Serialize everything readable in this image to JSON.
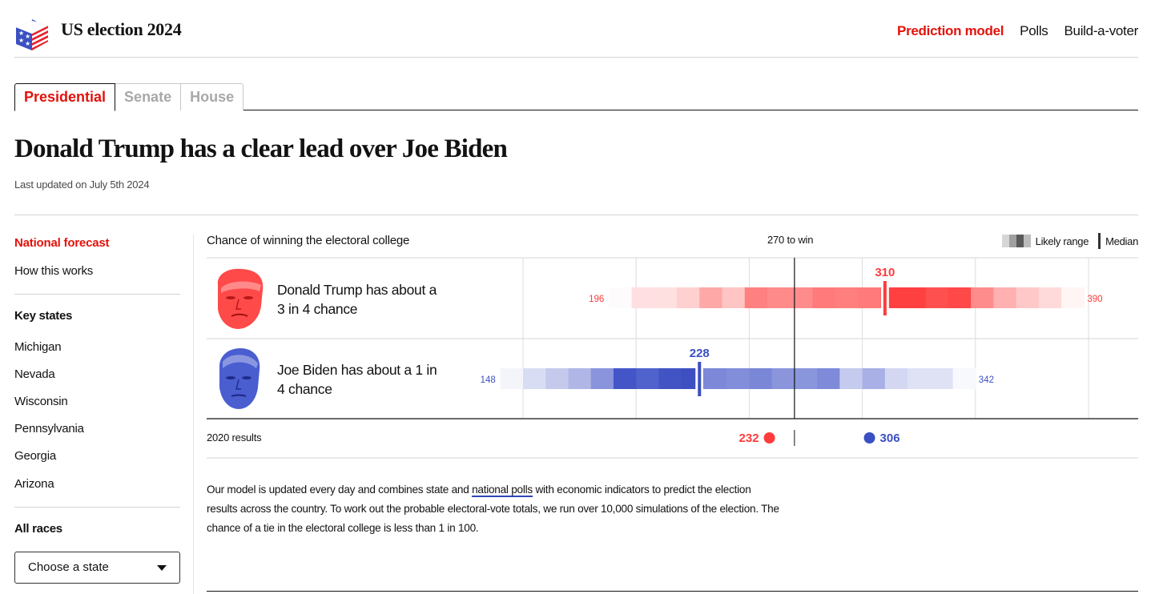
{
  "header": {
    "site_title": "US election 2024",
    "logo_icon": "ballot-box-flag-icon",
    "nav": [
      {
        "label": "Prediction model",
        "active": true
      },
      {
        "label": "Polls",
        "active": false
      },
      {
        "label": "Build-a-voter",
        "active": false
      }
    ]
  },
  "tabs": [
    {
      "label": "Presidential",
      "active": true
    },
    {
      "label": "Senate",
      "active": false
    },
    {
      "label": "House",
      "active": false
    }
  ],
  "headline": "Donald Trump has a clear lead over Joe Biden",
  "updated": "Last updated on July 5th 2024",
  "sidebar": {
    "links": [
      {
        "label": "National forecast",
        "active": true
      },
      {
        "label": "How this works",
        "active": false
      }
    ],
    "key_states_heading": "Key states",
    "key_states": [
      "Michigan",
      "Nevada",
      "Wisconsin",
      "Pennsylvania",
      "Georgia",
      "Arizona"
    ],
    "all_races_heading": "All races",
    "state_select": {
      "value": "Choose a state",
      "icon": "caret-down-icon"
    }
  },
  "colors": {
    "accent_red": "#e3120b",
    "trump_red": "#ff3b3b",
    "biden_blue": "#3a4fc2",
    "link_underline": "#2e45b8"
  },
  "chart_data": {
    "type": "heatmap",
    "title": "Chance of winning the electoral college",
    "threshold_label": "270 to win",
    "threshold": 270,
    "x_range": [
      150,
      400
    ],
    "gridlines": [
      150,
      200,
      250,
      300,
      350,
      400
    ],
    "legend": {
      "range_label": "Likely range",
      "median_label": "Median",
      "placement": "top-right"
    },
    "bin_width": 10,
    "series": [
      {
        "name": "Donald Trump",
        "summary": "Donald Trump has about a 3 in 4 chance",
        "face_icon": "trump-portrait-icon",
        "color": "#ff3b3b",
        "low": 196,
        "median": 310,
        "high": 390,
        "bin_start": 188,
        "bin_colors": [
          "#fdfbfb",
          "#ffdfe1",
          "#ffe0e0",
          "#ffd0d0",
          "#ffa8a8",
          "#ffc4c4",
          "#ff8080",
          "#ff8a8a",
          "#ff8c8c",
          "#ff7a7a",
          "#ff7f7f",
          "#ff7a7a",
          "#ff4040",
          "#ff4040",
          "#ff5050",
          "#ff4848",
          "#ff8c8c",
          "#ffb0b0",
          "#ffc8c8",
          "#ffdada",
          "#fff5f5"
        ]
      },
      {
        "name": "Joe Biden",
        "summary": "Joe Biden has about a 1 in 4 chance",
        "face_icon": "biden-portrait-icon",
        "color": "#3a4fc2",
        "low": 148,
        "median": 228,
        "high": 342,
        "bin_start": 140,
        "bin_colors": [
          "#f4f5fb",
          "#d9ddf3",
          "#c5caed",
          "#b0b7e6",
          "#8a94dc",
          "#4455c8",
          "#5062cc",
          "#4253c4",
          "#3e4fc2",
          "#7d89d8",
          "#838edb",
          "#7a87d6",
          "#8a95dc",
          "#8a96dc",
          "#7f8bd9",
          "#c5cbef",
          "#a8b0e6",
          "#d4d7f2",
          "#dfe2f5",
          "#dfe2f5",
          "#f8f9fd"
        ]
      }
    ],
    "results_2020": {
      "label": "2020 results",
      "trump": 232,
      "biden": 306
    }
  },
  "blurb": {
    "before": "Our model is updated every day and combines state and ",
    "link": "national polls",
    "after": " with economic indicators to predict the election results across the country. To work out the probable electoral-vote totals, we run over 10,000 simulations of the election. The chance of a tie in the electoral college is less than 1 in 100."
  }
}
